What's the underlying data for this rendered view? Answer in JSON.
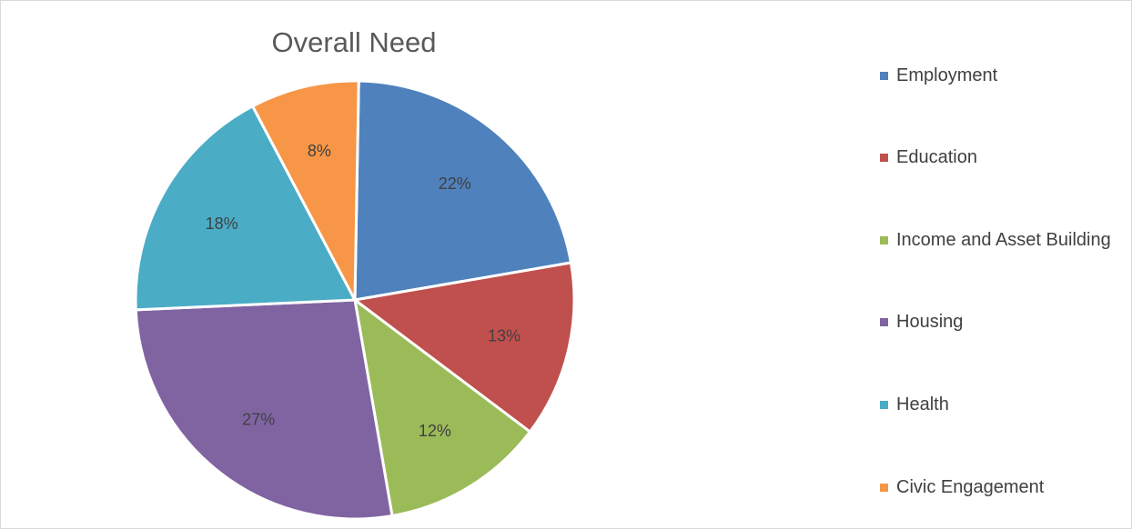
{
  "chart_data": {
    "type": "pie",
    "title": "Overall Need",
    "legend_position": "right",
    "slices": [
      {
        "label": "Employment",
        "value": 22,
        "display": "22%",
        "color": "#4F81BD"
      },
      {
        "label": "Education",
        "value": 13,
        "display": "13%",
        "color": "#C0504D"
      },
      {
        "label": "Income and Asset Building",
        "value": 12,
        "display": "12%",
        "color": "#9BBB59"
      },
      {
        "label": "Housing",
        "value": 27,
        "display": "27%",
        "color": "#8064A2"
      },
      {
        "label": "Health",
        "value": 18,
        "display": "18%",
        "color": "#4BACC6"
      },
      {
        "label": "Civic Engagement",
        "value": 8,
        "display": "8%",
        "color": "#F79646"
      }
    ]
  }
}
